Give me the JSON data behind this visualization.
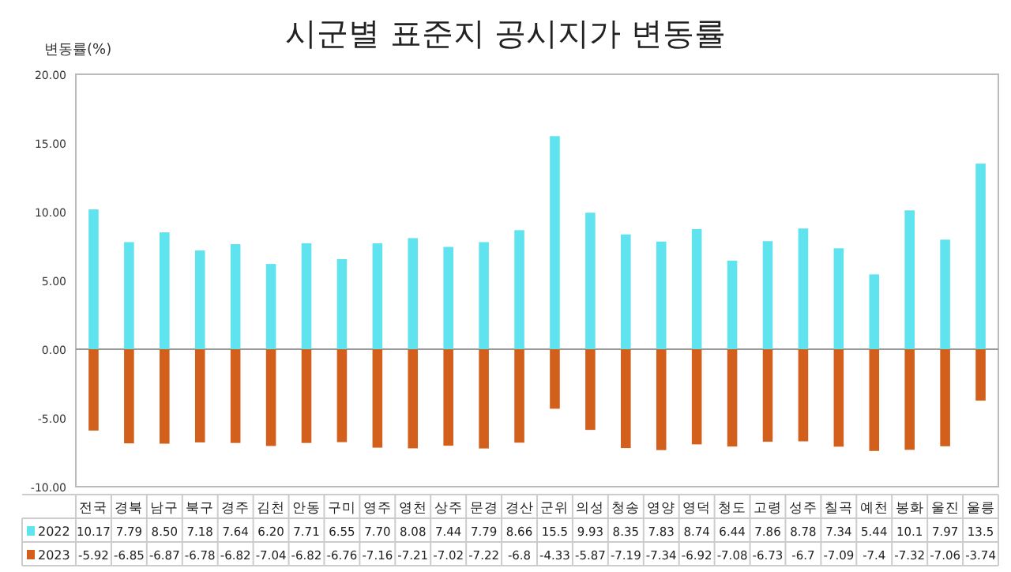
{
  "chart_data": {
    "type": "bar",
    "title": "시군별 표준지 공시지가 변동률",
    "ylabel": "변동률(%)",
    "categories": [
      "전국",
      "경북",
      "남구",
      "북구",
      "경주",
      "김천",
      "안동",
      "구미",
      "영주",
      "영천",
      "상주",
      "문경",
      "경산",
      "군위",
      "의성",
      "청송",
      "영양",
      "영덕",
      "청도",
      "고령",
      "성주",
      "칠곡",
      "예천",
      "봉화",
      "울진",
      "울릉"
    ],
    "series": [
      {
        "name": "2022",
        "color": "#5fe3ee",
        "values": [
          10.17,
          7.79,
          8.5,
          7.18,
          7.64,
          6.2,
          7.71,
          6.55,
          7.7,
          8.08,
          7.44,
          7.79,
          8.66,
          15.5,
          9.93,
          8.35,
          7.83,
          8.74,
          6.44,
          7.86,
          8.78,
          7.34,
          5.44,
          10.1,
          7.97,
          13.5
        ],
        "value_labels": [
          "10.17",
          "7.79",
          "8.50",
          "7.18",
          "7.64",
          "6.20",
          "7.71",
          "6.55",
          "7.70",
          "8.08",
          "7.44",
          "7.79",
          "8.66",
          "15.5",
          "9.93",
          "8.35",
          "7.83",
          "8.74",
          "6.44",
          "7.86",
          "8.78",
          "7.34",
          "5.44",
          "10.1",
          "7.97",
          "13.5"
        ]
      },
      {
        "name": "2023",
        "color": "#d2601c",
        "values": [
          -5.92,
          -6.85,
          -6.87,
          -6.78,
          -6.82,
          -7.04,
          -6.82,
          -6.76,
          -7.16,
          -7.21,
          -7.02,
          -7.22,
          -6.8,
          -4.33,
          -5.87,
          -7.19,
          -7.34,
          -6.92,
          -7.08,
          -6.73,
          -6.7,
          -7.09,
          -7.4,
          -7.32,
          -7.06,
          -3.74
        ],
        "value_labels": [
          "-5.92",
          "-6.85",
          "-6.87",
          "-6.78",
          "-6.82",
          "-7.04",
          "-6.82",
          "-6.76",
          "-7.16",
          "-7.21",
          "-7.02",
          "-7.22",
          "-6.8",
          "-4.33",
          "-5.87",
          "-7.19",
          "-7.34",
          "-6.92",
          "-7.08",
          "-6.73",
          "-6.7",
          "-7.09",
          "-7.4",
          "-7.32",
          "-7.06",
          "-3.74"
        ]
      }
    ],
    "ylim": [
      -10,
      20
    ],
    "yticks": [
      {
        "value": 20,
        "label": "20.00"
      },
      {
        "value": 15,
        "label": "15.00"
      },
      {
        "value": 10,
        "label": "10.00"
      },
      {
        "value": 5,
        "label": "5.00"
      },
      {
        "value": 0,
        "label": "0.00"
      },
      {
        "value": -5,
        "label": "-5.00"
      },
      {
        "value": -10,
        "label": "-10.00"
      }
    ],
    "legend": "bottom",
    "stacked": true
  }
}
